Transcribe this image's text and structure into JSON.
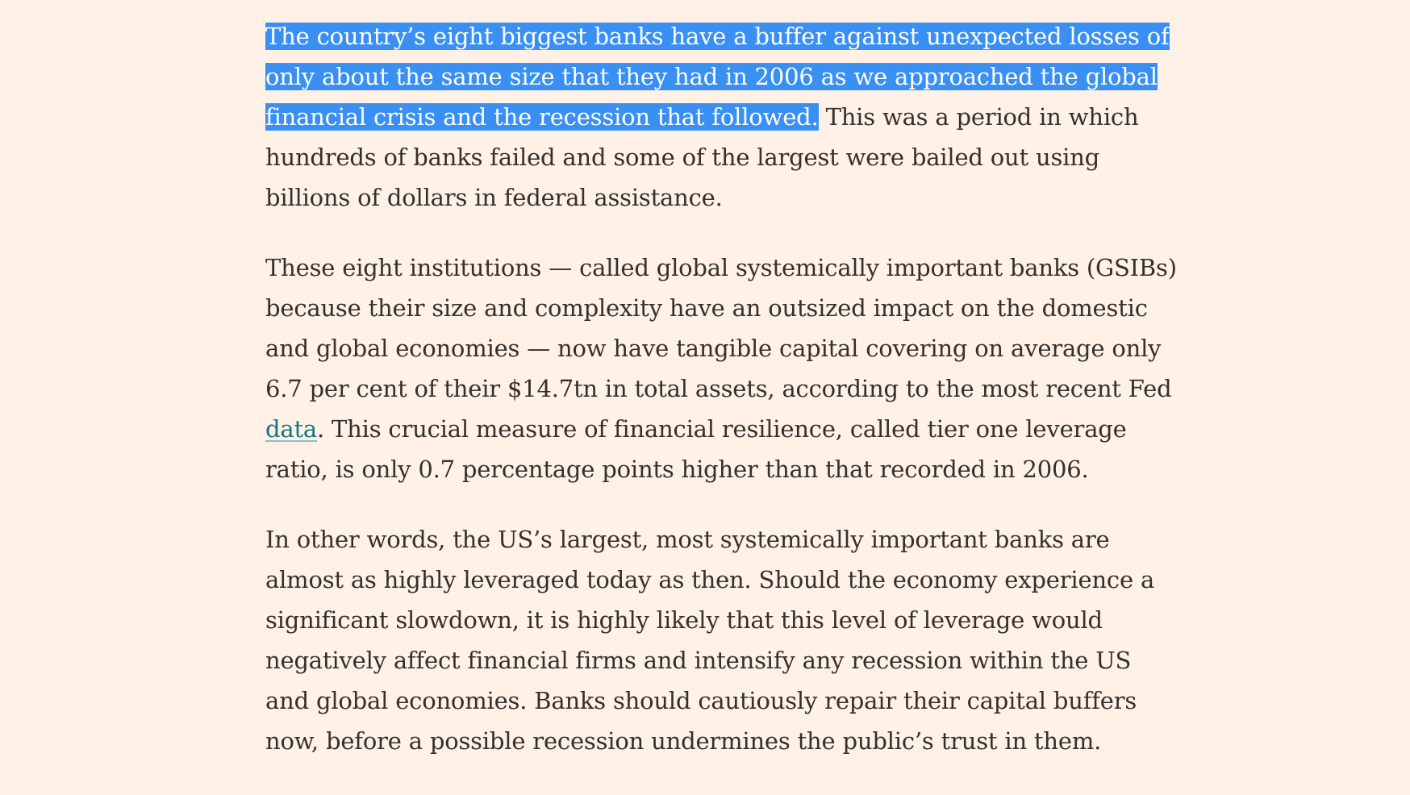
{
  "article": {
    "paragraph1": {
      "selected_text": "The country’s eight biggest banks have a buffer against unexpected losses of only about the same size that they had in 2006 as we approached the global financial crisis and the recession that followed.",
      "rest_text": " This was a period in which hundreds of banks failed and some of the largest were bailed out using billions of dollars in federal assistance."
    },
    "paragraph2": {
      "text_before_link": "These eight institutions — called global systemically important banks (GSIBs) because their size and complexity have an outsized impact on the domestic and global economies — now have tangible capital covering on average only 6.7 per cent of their $14.7tn in total assets, according to the most recent Fed ",
      "link_text": "data",
      "text_after_link": ". This crucial measure of financial resilience, called tier one leverage ratio, is only 0.7 percentage points higher than that recorded in 2006."
    },
    "paragraph3": {
      "text": "In other words, the US’s largest, most systemically important banks are almost as highly leveraged today as then. Should the economy experience a significant slowdown, it is highly likely that this level of leverage would negatively affect financial firms and intensify any recession within the US and global economies. Banks should cautiously repair their capital buffers now, before a possible recession undermines the public’s trust in them."
    }
  },
  "colors": {
    "page_background": "#fff1e5",
    "body_text": "#33302e",
    "selection_background": "#3a8ff2",
    "selection_text": "#ffffff",
    "link": "#0d7680"
  }
}
